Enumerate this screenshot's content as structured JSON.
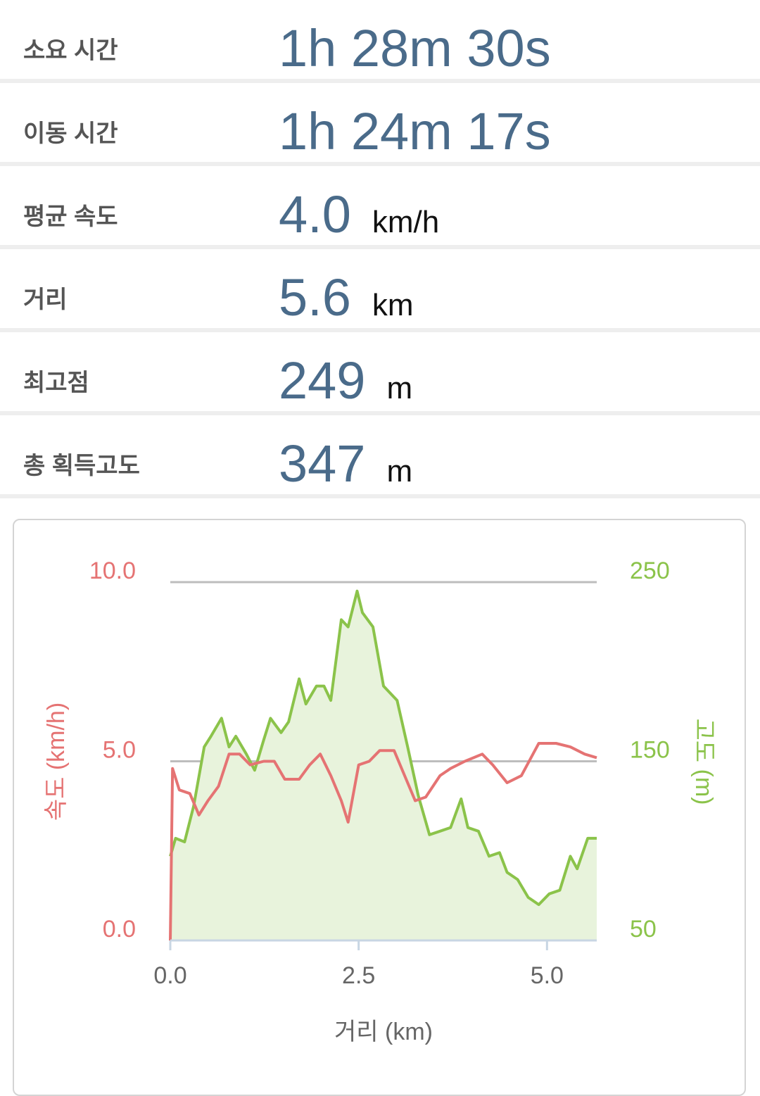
{
  "stats": [
    {
      "label": "소요 시간",
      "value": "1h 28m 30s"
    },
    {
      "label": "이동 시간",
      "value": "1h 24m 17s"
    },
    {
      "label": "평균 속도",
      "value": "4.0",
      "unit": "km/h"
    },
    {
      "label": "거리",
      "value": "5.6",
      "unit": "km"
    },
    {
      "label": "최고점",
      "value": "249",
      "unit": "m"
    },
    {
      "label": "총 획득고도",
      "value": "347",
      "unit": "m"
    }
  ],
  "chart_data": {
    "type": "line",
    "x_label": "거리 (km)",
    "y_label": "속도 (km/h)",
    "y2_label": "고도 (m)",
    "xlim": [
      0,
      5.66
    ],
    "xticks": [
      {
        "value": 0,
        "label": "0.0"
      },
      {
        "value": 2.5,
        "label": "2.5"
      },
      {
        "value": 5,
        "label": "5.0"
      }
    ],
    "ylim": [
      0,
      10
    ],
    "yticks": [
      {
        "value": 0,
        "label": "0.0"
      },
      {
        "value": 5,
        "label": "5.0"
      },
      {
        "value": 10,
        "label": "10.0"
      }
    ],
    "y2lim": [
      50,
      250
    ],
    "y2ticks": [
      50,
      150,
      250
    ],
    "grid": true,
    "series": [
      {
        "color": "#8bc34a",
        "axis": "y2",
        "fill": "#e8f3dc",
        "x": [
          0,
          0.07,
          0.19,
          0.31,
          0.45,
          0.54,
          0.68,
          0.78,
          0.87,
          1.01,
          1.12,
          1.24,
          1.33,
          1.47,
          1.57,
          1.71,
          1.8,
          1.94,
          2.04,
          2.13,
          2.27,
          2.36,
          2.48,
          2.55,
          2.69,
          2.83,
          3.01,
          3.15,
          3.29,
          3.44,
          3.58,
          3.72,
          3.86,
          3.95,
          4.09,
          4.23,
          4.37,
          4.47,
          4.61,
          4.75,
          4.89,
          5.03,
          5.17,
          5.31,
          5.4,
          5.54,
          5.66
        ],
        "values": [
          97,
          107,
          105,
          125,
          158,
          164,
          174,
          158,
          164,
          154,
          145,
          162,
          174,
          166,
          172,
          196,
          182,
          192,
          192,
          184,
          229,
          225,
          245,
          233,
          225,
          192,
          184,
          158,
          131,
          109,
          111,
          113,
          129,
          113,
          111,
          97,
          99,
          88,
          84,
          74,
          70,
          76,
          78,
          97,
          90,
          107,
          107
        ]
      },
      {
        "color": "#e57373",
        "axis": "y",
        "x": [
          0,
          0.03,
          0.12,
          0.26,
          0.38,
          0.5,
          0.64,
          0.78,
          0.92,
          1.06,
          1.24,
          1.38,
          1.52,
          1.71,
          1.85,
          1.99,
          2.13,
          2.27,
          2.36,
          2.5,
          2.64,
          2.78,
          2.97,
          3.11,
          3.25,
          3.39,
          3.58,
          3.72,
          3.91,
          4.14,
          4.28,
          4.47,
          4.66,
          4.89,
          5.12,
          5.31,
          5.5,
          5.66
        ],
        "values": [
          0,
          4.8,
          4.2,
          4.1,
          3.5,
          3.9,
          4.3,
          5.2,
          5.2,
          4.9,
          5.0,
          5.0,
          4.5,
          4.5,
          4.9,
          5.2,
          4.6,
          3.9,
          3.3,
          4.9,
          5.0,
          5.3,
          5.3,
          4.6,
          3.9,
          4.0,
          4.6,
          4.8,
          5.0,
          5.2,
          4.9,
          4.4,
          4.6,
          5.5,
          5.5,
          5.4,
          5.2,
          5.1
        ]
      }
    ]
  }
}
